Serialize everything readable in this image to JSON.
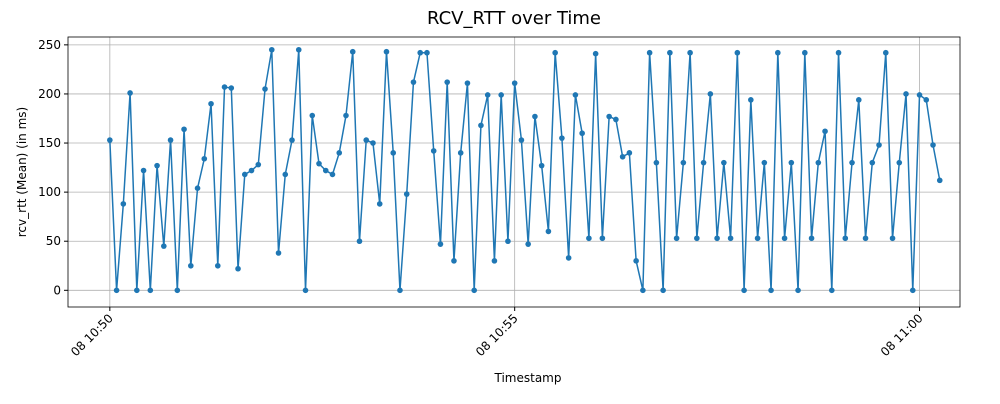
{
  "chart_data": {
    "type": "line",
    "title": "RCV_RTT over Time",
    "xlabel": "Timestamp",
    "ylabel": "rcv_rtt (Mean) (in ms)",
    "color": "#1f77b4",
    "grid": true,
    "xlim": [
      "08 10:49:29",
      "08 11:00:30"
    ],
    "xticks": [
      {
        "value": "08 10:50:00",
        "label": "08 10:50"
      },
      {
        "value": "08 10:55:00",
        "label": "08 10:55"
      },
      {
        "value": "08 11:00:00",
        "label": "08 11:00"
      }
    ],
    "ylim": [
      -17,
      258
    ],
    "yticks": [
      0,
      50,
      100,
      150,
      200,
      250
    ],
    "x": [
      "08 10:50:00",
      "08 10:50:05",
      "08 10:50:10",
      "08 10:50:15",
      "08 10:50:20",
      "08 10:50:25",
      "08 10:50:30",
      "08 10:50:35",
      "08 10:50:40",
      "08 10:50:45",
      "08 10:50:50",
      "08 10:50:55",
      "08 10:51:00",
      "08 10:51:05",
      "08 10:51:10",
      "08 10:51:15",
      "08 10:51:20",
      "08 10:51:25",
      "08 10:51:30",
      "08 10:51:35",
      "08 10:51:40",
      "08 10:51:45",
      "08 10:51:50",
      "08 10:51:55",
      "08 10:52:00",
      "08 10:52:05",
      "08 10:52:10",
      "08 10:52:15",
      "08 10:52:20",
      "08 10:52:25",
      "08 10:52:30",
      "08 10:52:35",
      "08 10:52:40",
      "08 10:52:45",
      "08 10:52:50",
      "08 10:52:55",
      "08 10:53:00",
      "08 10:53:05",
      "08 10:53:10",
      "08 10:53:15",
      "08 10:53:20",
      "08 10:53:25",
      "08 10:53:30",
      "08 10:53:35",
      "08 10:53:40",
      "08 10:53:45",
      "08 10:53:50",
      "08 10:53:55",
      "08 10:54:00",
      "08 10:54:05",
      "08 10:54:10",
      "08 10:54:15",
      "08 10:54:20",
      "08 10:54:25",
      "08 10:54:30",
      "08 10:54:35",
      "08 10:54:40",
      "08 10:54:45",
      "08 10:54:50",
      "08 10:54:55",
      "08 10:55:00",
      "08 10:55:05",
      "08 10:55:10",
      "08 10:55:15",
      "08 10:55:20",
      "08 10:55:25",
      "08 10:55:30",
      "08 10:55:35",
      "08 10:55:40",
      "08 10:55:45",
      "08 10:55:50",
      "08 10:55:55",
      "08 10:56:00",
      "08 10:56:05",
      "08 10:56:10",
      "08 10:56:15",
      "08 10:56:20",
      "08 10:56:25",
      "08 10:56:30",
      "08 10:56:35",
      "08 10:56:40",
      "08 10:56:45",
      "08 10:56:50",
      "08 10:56:55",
      "08 10:57:00",
      "08 10:57:05",
      "08 10:57:10",
      "08 10:57:15",
      "08 10:57:20",
      "08 10:57:25",
      "08 10:57:30",
      "08 10:57:35",
      "08 10:57:40",
      "08 10:57:45",
      "08 10:57:50",
      "08 10:57:55",
      "08 10:58:00",
      "08 10:58:05",
      "08 10:58:10",
      "08 10:58:15",
      "08 10:58:20",
      "08 10:58:25",
      "08 10:58:30",
      "08 10:58:35",
      "08 10:58:40",
      "08 10:58:45",
      "08 10:58:50",
      "08 10:58:55",
      "08 10:59:00",
      "08 10:59:05",
      "08 10:59:10",
      "08 10:59:15",
      "08 10:59:20",
      "08 10:59:25",
      "08 10:59:30",
      "08 10:59:35",
      "08 10:59:40",
      "08 10:59:45",
      "08 10:59:50",
      "08 10:59:55",
      "08 11:00:00",
      "08 11:00:05",
      "08 11:00:10",
      "08 11:00:15"
    ],
    "values": [
      153,
      0,
      88,
      201,
      0,
      122,
      0,
      127,
      45,
      153,
      0,
      164,
      25,
      104,
      134,
      190,
      25,
      207,
      206,
      22,
      118,
      122,
      128,
      205,
      245,
      38,
      118,
      153,
      245,
      0,
      178,
      129,
      122,
      118,
      140,
      178,
      243,
      50,
      153,
      150,
      88,
      243,
      140,
      0,
      98,
      212,
      242,
      242,
      142,
      47,
      212,
      30,
      140,
      211,
      0,
      168,
      199,
      30,
      199,
      50,
      211,
      153,
      47,
      177,
      127,
      60,
      242,
      155,
      33,
      199,
      160,
      53,
      241,
      53,
      177,
      174,
      136,
      140,
      30,
      0,
      242,
      130,
      0,
      242,
      53,
      130,
      242,
      53,
      130,
      200,
      53,
      130,
      53,
      242,
      0,
      194,
      53,
      130,
      0,
      242,
      53,
      130,
      0,
      242,
      53,
      130,
      162,
      0,
      242,
      53,
      130,
      194,
      53,
      130,
      148,
      242,
      53,
      130,
      200,
      0,
      199,
      194,
      148,
      112
    ]
  }
}
